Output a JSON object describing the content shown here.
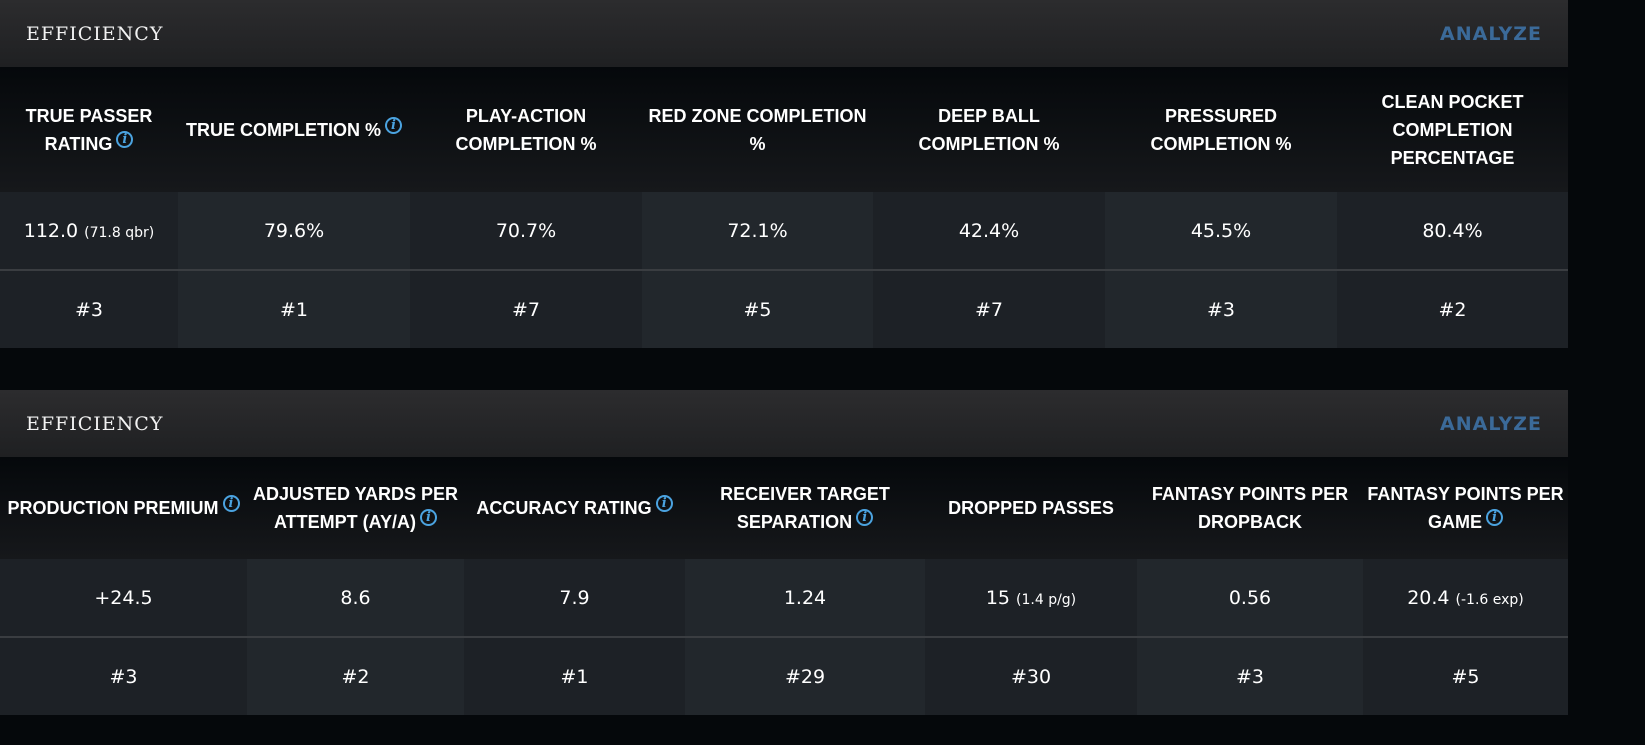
{
  "sections": [
    {
      "title": "EFFICIENCY",
      "action": "ANALYZE",
      "columns": [
        {
          "label": "TRUE PASSER RATING",
          "info": true,
          "value": "112.0",
          "sub": "(71.8 qbr)",
          "rank": "#3"
        },
        {
          "label": "TRUE COMPLETION %",
          "info": true,
          "value": "79.6%",
          "sub": "",
          "rank": "#1"
        },
        {
          "label": "PLAY-ACTION COMPLETION %",
          "info": false,
          "value": "70.7%",
          "sub": "",
          "rank": "#7"
        },
        {
          "label": "RED ZONE COMPLETION %",
          "info": false,
          "value": "72.1%",
          "sub": "",
          "rank": "#5"
        },
        {
          "label": "DEEP BALL COMPLETION %",
          "info": false,
          "value": "42.4%",
          "sub": "",
          "rank": "#7"
        },
        {
          "label": "PRESSURED COMPLETION %",
          "info": false,
          "value": "45.5%",
          "sub": "",
          "rank": "#3"
        },
        {
          "label": "CLEAN POCKET COMPLETION PERCENTAGE",
          "info": false,
          "value": "80.4%",
          "sub": "",
          "rank": "#2"
        }
      ]
    },
    {
      "title": "EFFICIENCY",
      "action": "ANALYZE",
      "columns": [
        {
          "label": "PRODUCTION PREMIUM",
          "info": true,
          "value": "+24.5",
          "sub": "",
          "rank": "#3"
        },
        {
          "label": "ADJUSTED YARDS PER ATTEMPT (AY/A)",
          "info": true,
          "value": "8.6",
          "sub": "",
          "rank": "#2"
        },
        {
          "label": "ACCURACY RATING",
          "info": true,
          "value": "7.9",
          "sub": "",
          "rank": "#1"
        },
        {
          "label": "RECEIVER TARGET SEPARATION",
          "info": true,
          "value": "1.24",
          "sub": "",
          "rank": "#29"
        },
        {
          "label": "DROPPED PASSES",
          "info": false,
          "value": "15",
          "sub": "(1.4 p/g)",
          "rank": "#30"
        },
        {
          "label": "FANTASY POINTS PER DROPBACK",
          "info": false,
          "value": "0.56",
          "sub": "",
          "rank": "#3"
        },
        {
          "label": "FANTASY POINTS PER GAME",
          "info": true,
          "value": "20.4",
          "sub": "(-1.6 exp)",
          "rank": "#5"
        }
      ]
    }
  ],
  "colors": {
    "accent": "#4ba3e0",
    "analyze": "#3b6a99"
  },
  "icons": {
    "info": "info-circle-icon"
  }
}
